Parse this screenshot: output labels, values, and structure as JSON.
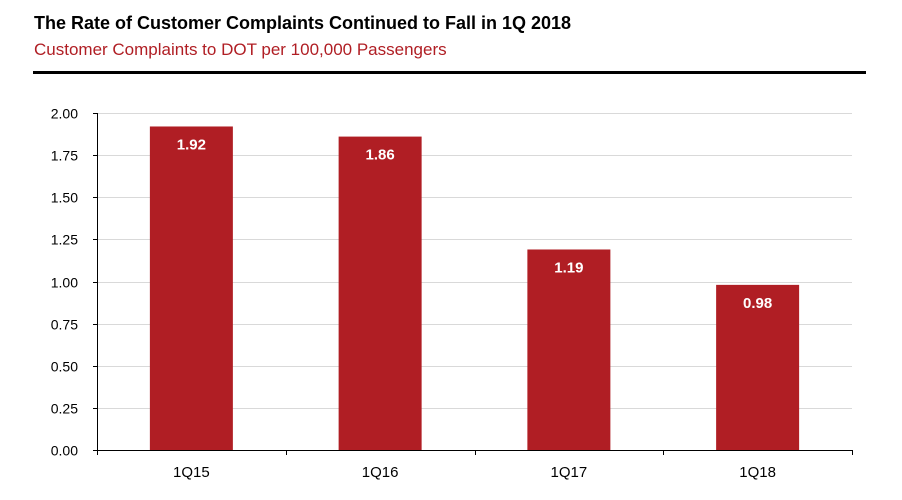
{
  "chart_data": {
    "type": "bar",
    "title": "The Rate of Customer Complaints Continued to Fall in 1Q 2018",
    "subtitle": "Customer Complaints to DOT per 100,000 Passengers",
    "categories": [
      "1Q15",
      "1Q16",
      "1Q17",
      "1Q18"
    ],
    "values": [
      1.92,
      1.86,
      1.19,
      0.98
    ],
    "data_labels": [
      "1.92",
      "1.86",
      "1.19",
      "0.98"
    ],
    "ylim": [
      0,
      2.0
    ],
    "yticks": [
      "0.00",
      "0.25",
      "0.50",
      "0.75",
      "1.00",
      "1.25",
      "1.50",
      "1.75",
      "2.00"
    ],
    "grid": true,
    "legend": "none",
    "bar_color": "#b01e24",
    "title_color": "#000000",
    "subtitle_color": "#b01e24"
  }
}
